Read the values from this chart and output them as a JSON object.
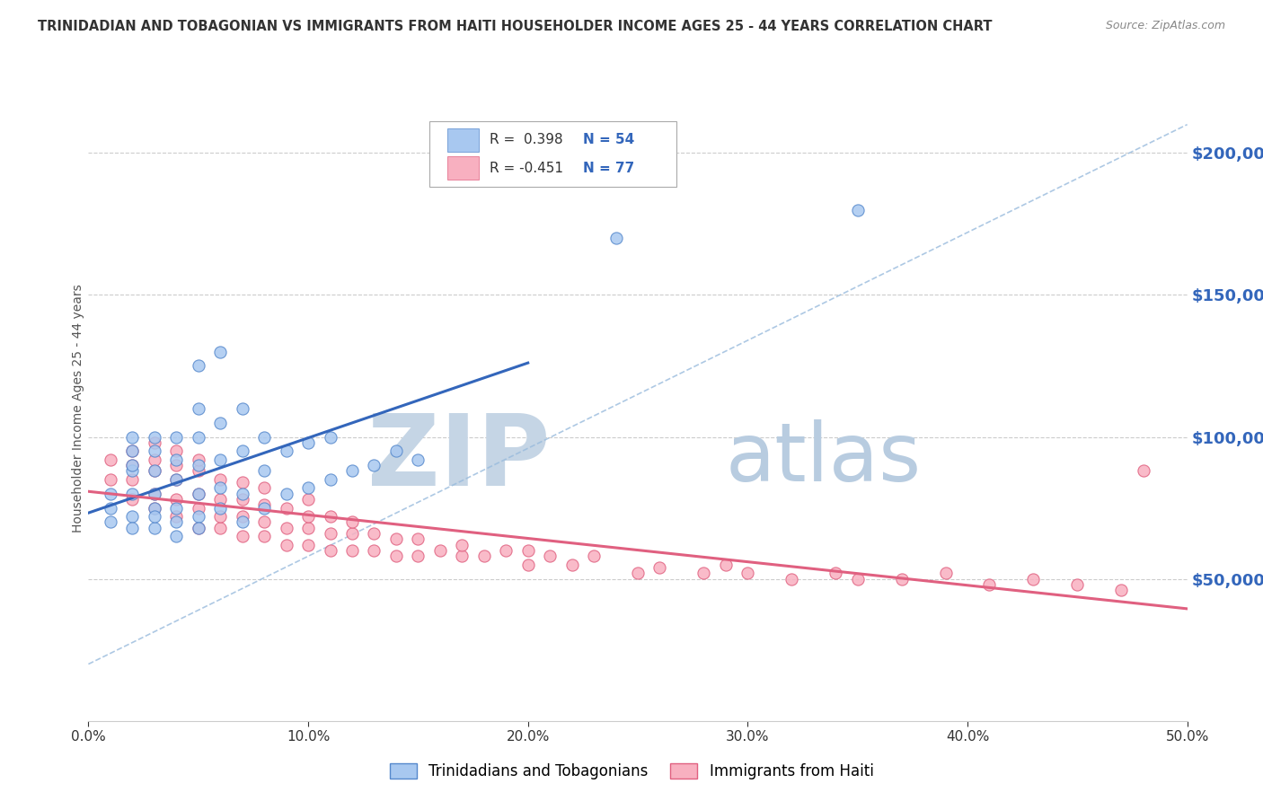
{
  "title": "TRINIDADIAN AND TOBAGONIAN VS IMMIGRANTS FROM HAITI HOUSEHOLDER INCOME AGES 25 - 44 YEARS CORRELATION CHART",
  "source": "Source: ZipAtlas.com",
  "ylabel": "Householder Income Ages 25 - 44 years",
  "x_min": 0.0,
  "x_max": 0.5,
  "y_min": 0,
  "y_max": 220000,
  "y_ticks": [
    50000,
    100000,
    150000,
    200000
  ],
  "y_tick_labels": [
    "$50,000",
    "$100,000",
    "$150,000",
    "$200,000"
  ],
  "x_ticks": [
    0.0,
    0.1,
    0.2,
    0.3,
    0.4,
    0.5
  ],
  "x_tick_labels": [
    "0.0%",
    "10.0%",
    "20.0%",
    "30.0%",
    "40.0%",
    "50.0%"
  ],
  "series1_color": "#a8c8f0",
  "series1_edge": "#5588cc",
  "series1_label": "Trinidadians and Tobagonians",
  "series1_R": "0.398",
  "series1_N": "54",
  "series1_line_color": "#3366bb",
  "series2_color": "#f8b0c0",
  "series2_edge": "#e06080",
  "series2_label": "Immigrants from Haiti",
  "series2_R": "-0.451",
  "series2_N": "77",
  "series2_line_color": "#e06080",
  "ref_line_color": "#99bbdd",
  "watermark_zip": "ZIP",
  "watermark_atlas": "atlas",
  "watermark_color_zip": "#c5d5e5",
  "watermark_color_atlas": "#b8cce0",
  "background_color": "#ffffff",
  "grid_color": "#cccccc",
  "title_color": "#333333",
  "axis_label_color": "#3366bb",
  "legend_R_color": "#3366bb",
  "series1_x": [
    0.01,
    0.01,
    0.01,
    0.02,
    0.02,
    0.02,
    0.02,
    0.02,
    0.02,
    0.02,
    0.03,
    0.03,
    0.03,
    0.03,
    0.03,
    0.03,
    0.03,
    0.04,
    0.04,
    0.04,
    0.04,
    0.04,
    0.04,
    0.05,
    0.05,
    0.05,
    0.05,
    0.05,
    0.05,
    0.06,
    0.06,
    0.06,
    0.06,
    0.07,
    0.07,
    0.07,
    0.07,
    0.08,
    0.08,
    0.08,
    0.09,
    0.09,
    0.1,
    0.1,
    0.11,
    0.11,
    0.12,
    0.13,
    0.14,
    0.15,
    0.24,
    0.35,
    0.05,
    0.06
  ],
  "series1_y": [
    75000,
    80000,
    70000,
    72000,
    80000,
    88000,
    90000,
    95000,
    100000,
    68000,
    75000,
    80000,
    88000,
    95000,
    100000,
    68000,
    72000,
    70000,
    75000,
    85000,
    92000,
    100000,
    65000,
    72000,
    80000,
    90000,
    100000,
    110000,
    68000,
    75000,
    82000,
    92000,
    105000,
    70000,
    80000,
    95000,
    110000,
    75000,
    88000,
    100000,
    80000,
    95000,
    82000,
    98000,
    85000,
    100000,
    88000,
    90000,
    95000,
    92000,
    170000,
    180000,
    125000,
    130000
  ],
  "series2_x": [
    0.01,
    0.01,
    0.02,
    0.02,
    0.02,
    0.02,
    0.03,
    0.03,
    0.03,
    0.03,
    0.03,
    0.04,
    0.04,
    0.04,
    0.04,
    0.04,
    0.05,
    0.05,
    0.05,
    0.05,
    0.05,
    0.06,
    0.06,
    0.06,
    0.06,
    0.07,
    0.07,
    0.07,
    0.07,
    0.08,
    0.08,
    0.08,
    0.08,
    0.09,
    0.09,
    0.09,
    0.1,
    0.1,
    0.1,
    0.1,
    0.11,
    0.11,
    0.11,
    0.12,
    0.12,
    0.12,
    0.13,
    0.13,
    0.14,
    0.14,
    0.15,
    0.15,
    0.16,
    0.17,
    0.17,
    0.18,
    0.19,
    0.2,
    0.2,
    0.21,
    0.22,
    0.23,
    0.25,
    0.26,
    0.28,
    0.29,
    0.3,
    0.32,
    0.34,
    0.35,
    0.37,
    0.39,
    0.41,
    0.43,
    0.45,
    0.47,
    0.48
  ],
  "series2_y": [
    85000,
    92000,
    78000,
    85000,
    90000,
    95000,
    75000,
    80000,
    88000,
    92000,
    98000,
    72000,
    78000,
    85000,
    90000,
    95000,
    68000,
    75000,
    80000,
    88000,
    92000,
    68000,
    72000,
    78000,
    85000,
    65000,
    72000,
    78000,
    84000,
    65000,
    70000,
    76000,
    82000,
    62000,
    68000,
    75000,
    62000,
    68000,
    72000,
    78000,
    60000,
    66000,
    72000,
    60000,
    66000,
    70000,
    60000,
    66000,
    58000,
    64000,
    58000,
    64000,
    60000,
    58000,
    62000,
    58000,
    60000,
    55000,
    60000,
    58000,
    55000,
    58000,
    52000,
    54000,
    52000,
    55000,
    52000,
    50000,
    52000,
    50000,
    50000,
    52000,
    48000,
    50000,
    48000,
    46000,
    88000
  ]
}
